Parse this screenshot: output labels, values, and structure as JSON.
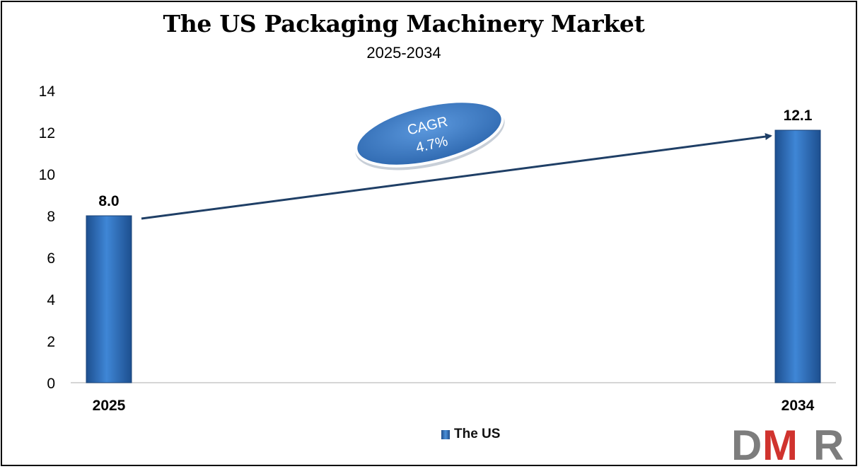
{
  "chart_data": {
    "type": "bar",
    "title": "The US Packaging Machinery Market",
    "subtitle": "2025-2034",
    "categories": [
      "2025",
      "2034"
    ],
    "series": [
      {
        "name": "The US",
        "values": [
          8.0,
          12.1
        ],
        "labels": [
          "8.0",
          "12.1"
        ]
      }
    ],
    "ylim": [
      0,
      14
    ],
    "yticks": [
      0,
      2,
      4,
      6,
      8,
      10,
      12,
      14
    ],
    "ytick_labels": [
      "0",
      "2",
      "4",
      "6",
      "8",
      "10",
      "12",
      "14"
    ],
    "grid": false,
    "legend": "bottom-center",
    "annotation": {
      "line1": "CAGR",
      "line2": "4.7%"
    }
  },
  "colors": {
    "bar": "#2e6fbf",
    "arrow": "#1f3f66",
    "ellipse": "#3d7cc9",
    "logo_gray": "#7d7d7d",
    "logo_red": "#d0332e"
  },
  "logo": {
    "text": "DMR"
  }
}
